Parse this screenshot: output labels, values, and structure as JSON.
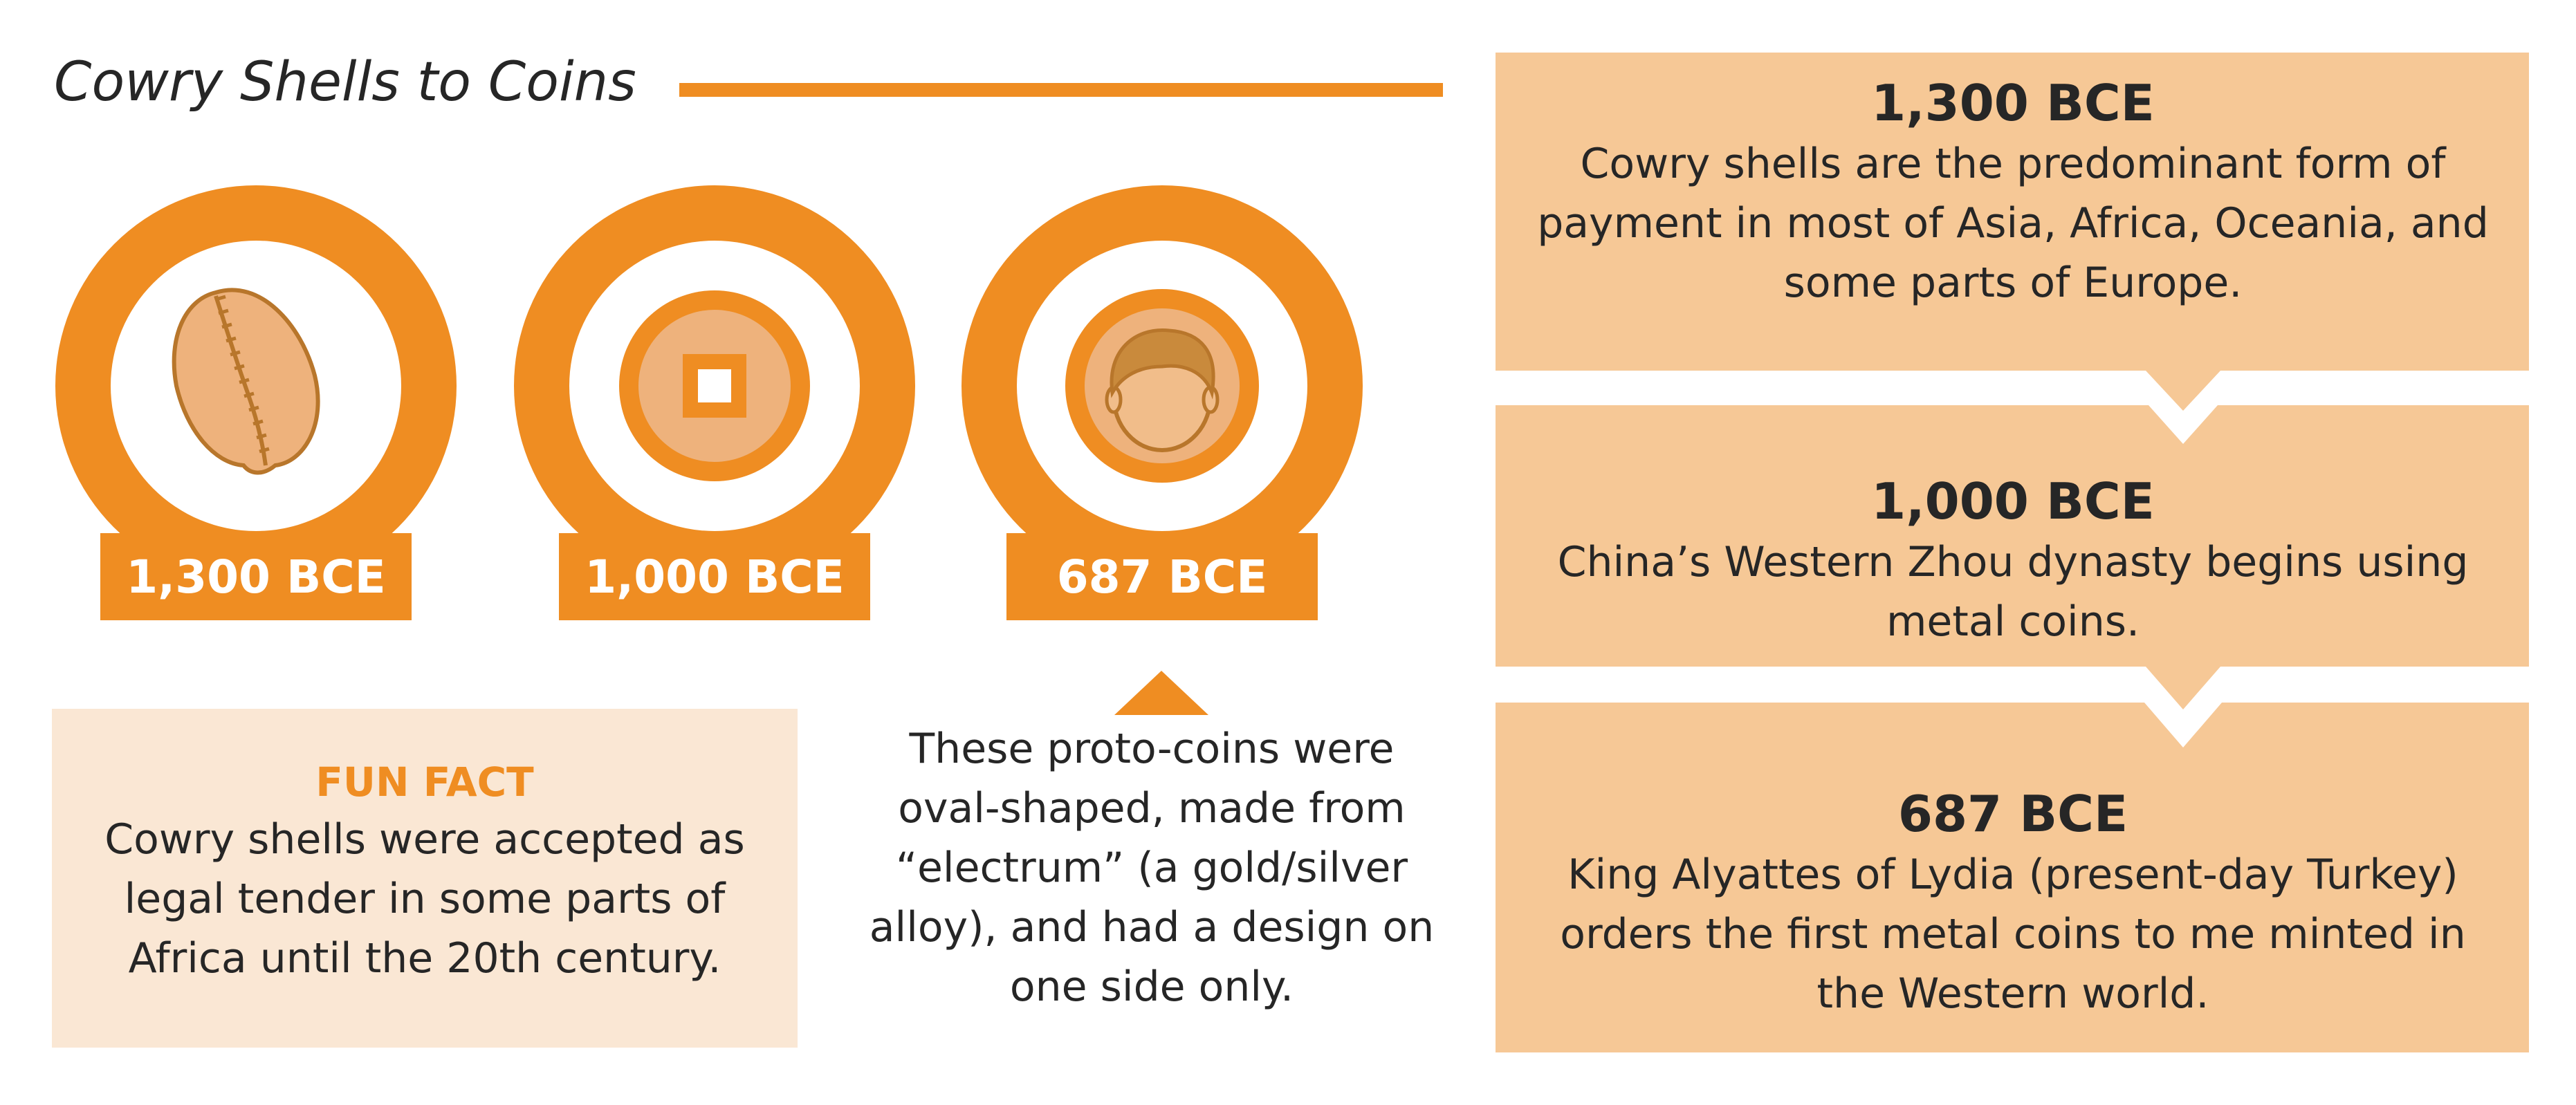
{
  "title": "Cowry Shells to Coins",
  "colors": {
    "accent": "#ef8d22",
    "panel": "#f6c896",
    "light_panel": "#fae7d4",
    "coin": "#eeb27c",
    "text": "#262626"
  },
  "medallions": [
    {
      "label": "1,300 BCE",
      "icon": "cowry-shell-icon"
    },
    {
      "label": "1,000 BCE",
      "icon": "square-hole-coin-icon"
    },
    {
      "label": "687 BCE",
      "icon": "face-coin-icon"
    }
  ],
  "fun_fact": {
    "title": "FUN FACT",
    "body": "Cowry shells were accepted as legal tender in some parts of Africa until the 20th century."
  },
  "proto_note": "These proto-coins were oval-shaped, made from “electrum” (a gold/silver alloy), and had a design on one side only.",
  "timeline": [
    {
      "year": "1,300 BCE",
      "description": "Cowry shells are the predominant form of payment in most of Asia, Africa, Oceania, and some parts of Europe."
    },
    {
      "year": "1,000 BCE",
      "description": "China’s Western Zhou dynasty begins using metal coins."
    },
    {
      "year": "687 BCE",
      "description": "King Alyattes of Lydia (present-day Turkey) orders the first metal coins to me minted in the Western world."
    }
  ]
}
